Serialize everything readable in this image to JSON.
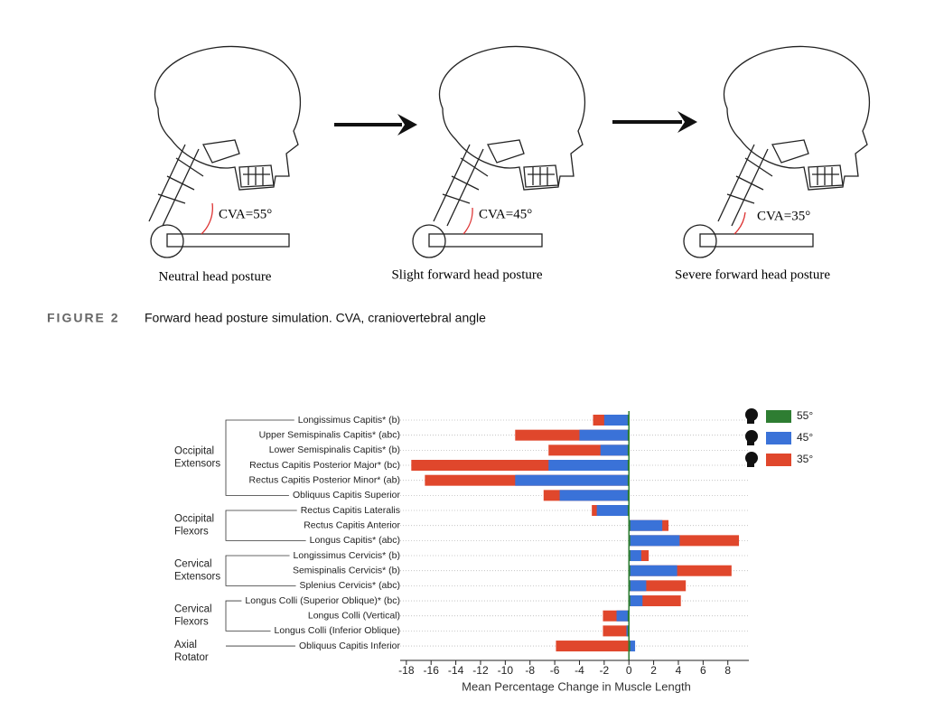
{
  "figure": {
    "panels": [
      {
        "angle_label": "CVA=55°",
        "caption": "Neutral head posture"
      },
      {
        "angle_label": "CVA=45°",
        "caption": "Slight forward head posture"
      },
      {
        "angle_label": "CVA=35°",
        "caption": "Severe forward head posture"
      }
    ],
    "label": "FIGURE 2",
    "caption": "Forward head posture simulation. CVA, craniovertebral angle"
  },
  "chart_data": {
    "type": "bar",
    "orientation": "horizontal",
    "overlap": true,
    "categories": [
      "Longissimus Capitis* (b)",
      "Upper Semispinalis Capitis* (abc)",
      "Lower Semispinalis Capitis* (b)",
      "Rectus Capitis Posterior Major* (bc)",
      "Rectus Capitis Posterior Minor* (ab)",
      "Obliquus Capitis Superior",
      "Rectus Capitis Lateralis",
      "Rectus Capitis Anterior",
      "Longus Capitis* (abc)",
      "Longissimus Cervicis* (b)",
      "Semispinalis Cervicis* (b)",
      "Splenius Cervicis* (abc)",
      "Longus Colli (Superior Oblique)* (bc)",
      "Longus Colli (Vertical)",
      "Longus Colli (Inferior Oblique)",
      "Obliquus Capitis Inferior"
    ],
    "groups": [
      {
        "lines": [
          "Occipital",
          "Extensors"
        ],
        "start": 0,
        "end": 5
      },
      {
        "lines": [
          "Occipital",
          "Flexors"
        ],
        "start": 6,
        "end": 8
      },
      {
        "lines": [
          "Cervical",
          "Extensors"
        ],
        "start": 9,
        "end": 11
      },
      {
        "lines": [
          "Cervical",
          "Flexors"
        ],
        "start": 12,
        "end": 14
      },
      {
        "lines": [
          "Axial",
          "Rotator"
        ],
        "start": 15,
        "end": 15
      }
    ],
    "series": [
      {
        "name": "55°",
        "color": "#2e7d32",
        "values": [
          -0.1,
          -0.1,
          -0.1,
          -0.1,
          -0.1,
          -0.1,
          -0.1,
          0.1,
          0.1,
          0.1,
          0.1,
          0.1,
          0.1,
          -0.1,
          -0.1,
          0.1
        ]
      },
      {
        "name": "45°",
        "color": "#3a72d8",
        "values": [
          -2.0,
          -4.0,
          -2.3,
          -6.5,
          -9.2,
          -5.6,
          -2.6,
          2.7,
          4.1,
          1.0,
          3.9,
          1.4,
          1.1,
          -1.0,
          -0.2,
          0.5
        ]
      },
      {
        "name": "35°",
        "color": "#e0472c",
        "values": [
          -2.9,
          -9.2,
          -6.5,
          -17.6,
          -16.5,
          -6.9,
          -3.0,
          3.2,
          8.9,
          1.6,
          8.3,
          4.6,
          4.2,
          -2.1,
          -2.1,
          -5.9
        ]
      }
    ],
    "xlabel": "Mean Percentage Change in Muscle Length",
    "xlim": [
      -18.5,
      9.7
    ],
    "xticks": [
      -18,
      -16,
      -14,
      -12,
      -10,
      -8,
      -6,
      -4,
      -2,
      0,
      2,
      4,
      6,
      8
    ],
    "legend": "upper right"
  }
}
